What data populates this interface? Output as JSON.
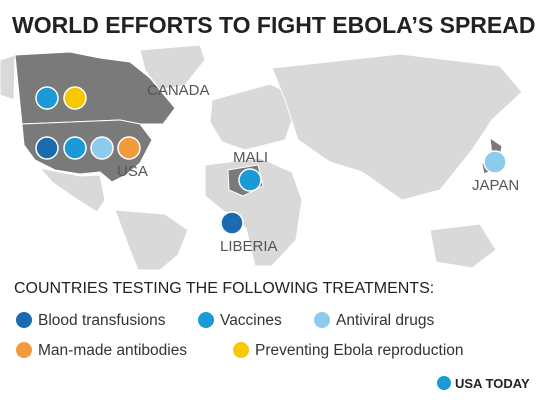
{
  "header": {
    "title": "WORLD EFFORTS TO FIGHT EBOLA’S SPREAD"
  },
  "map": {
    "labels": [
      "CANADA",
      "USA",
      "MALI",
      "LIBERIA",
      "JAPAN"
    ]
  },
  "legend": {
    "title": "COUNTRIES TESTING THE FOLLOWING TREATMENTS:",
    "items": [
      "Blood transfusions",
      "Vaccines",
      "Antiviral drugs",
      "Man-made antibodies",
      "Preventing Ebola reproduction"
    ]
  },
  "brand": "USA TODAY"
}
